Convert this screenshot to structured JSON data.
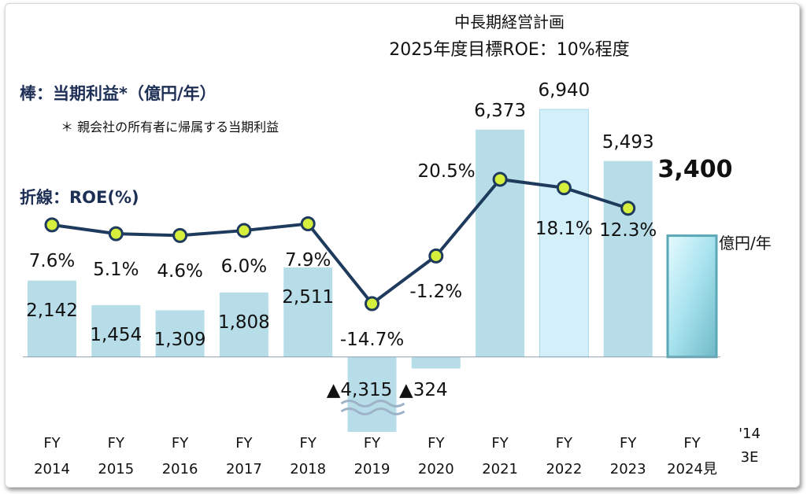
{
  "chart_data": {
    "type": "bar",
    "title": "中長期経営計画",
    "subtitle": "2025年度目標ROE：10%程度",
    "categories": [
      "FY\n2014",
      "FY\n2015",
      "FY\n2016",
      "FY\n2017",
      "FY\n2018",
      "FY\n2019",
      "FY\n2020",
      "FY\n2021",
      "FY\n2022",
      "FY\n2023",
      "FY\n2024見"
    ],
    "ylim": [
      -2100,
      8000
    ],
    "y2lim": [
      -51,
      51
    ],
    "series": [
      {
        "name": "棒：当期利益*（億円/年）",
        "type": "bar",
        "colors": [
          "#b7dde8",
          "#b7dde8",
          "#b7dde8",
          "#b7dde8",
          "#b7dde8",
          "#b7dde8",
          "#b7dde8",
          "#b7dde8",
          "#d3f0fa",
          "#b7dde8",
          "#a6e2ee"
        ],
        "values": [
          2142,
          1454,
          1309,
          1808,
          2511,
          -4315,
          -324,
          6373,
          6940,
          5493,
          3400
        ],
        "value_labels": [
          "2,142",
          "1,454",
          "1,309",
          "1,808",
          "2,511",
          "▲4,315",
          "▲324",
          "6,373",
          "6,940",
          "5,493",
          "3,400"
        ]
      },
      {
        "name": "折線：ROE(%)",
        "type": "line",
        "axis": "y2",
        "color": "#1e3a5c",
        "marker_color": "#d6ee3c",
        "values": [
          7.6,
          5.1,
          4.6,
          6.0,
          7.9,
          -14.7,
          -1.2,
          20.5,
          18.1,
          12.3,
          null
        ],
        "value_labels": [
          "7.6%",
          "5.1%",
          "4.6%",
          "6.0%",
          "7.9%",
          "-14.7%",
          "-1.2%",
          "20.5%",
          "18.1%",
          "12.3%",
          null
        ]
      }
    ],
    "annotations": [
      "＊ 親会社の所有者に帰属する当期利益",
      "億円/年",
      "'14\n3E"
    ]
  }
}
